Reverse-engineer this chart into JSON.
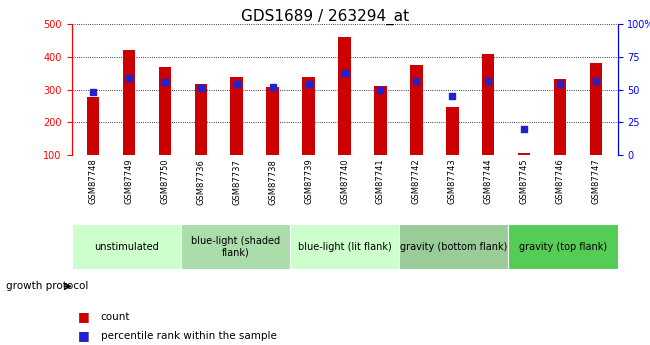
{
  "title": "GDS1689 / 263294_at",
  "samples": [
    "GSM87748",
    "GSM87749",
    "GSM87750",
    "GSM87736",
    "GSM87737",
    "GSM87738",
    "GSM87739",
    "GSM87740",
    "GSM87741",
    "GSM87742",
    "GSM87743",
    "GSM87744",
    "GSM87745",
    "GSM87746",
    "GSM87747"
  ],
  "counts": [
    278,
    422,
    368,
    316,
    338,
    308,
    338,
    460,
    312,
    375,
    248,
    410,
    108,
    332,
    380
  ],
  "percentiles": [
    48,
    59,
    56,
    51,
    54,
    52,
    54,
    63,
    50,
    57,
    45,
    57,
    20,
    54,
    57
  ],
  "bar_color": "#cc0000",
  "dot_color": "#2222cc",
  "bar_width": 0.35,
  "ylim_left": [
    100,
    500
  ],
  "ylim_right": [
    0,
    100
  ],
  "yticks_left": [
    100,
    200,
    300,
    400,
    500
  ],
  "yticks_right": [
    0,
    25,
    50,
    75,
    100
  ],
  "yticklabels_right": [
    "0",
    "25",
    "50",
    "75",
    "100%"
  ],
  "groups": [
    {
      "label": "unstimulated",
      "start": 0,
      "end": 3,
      "color": "#ccffcc"
    },
    {
      "label": "blue-light (shaded\nflank)",
      "start": 3,
      "end": 6,
      "color": "#aaddaa"
    },
    {
      "label": "blue-light (lit flank)",
      "start": 6,
      "end": 9,
      "color": "#ccffcc"
    },
    {
      "label": "gravity (bottom flank)",
      "start": 9,
      "end": 12,
      "color": "#99cc99"
    },
    {
      "label": "gravity (top flank)",
      "start": 12,
      "end": 15,
      "color": "#55cc55"
    }
  ],
  "growth_protocol_label": "growth protocol",
  "legend_count_label": "count",
  "legend_percentile_label": "percentile rank within the sample",
  "grid_color": "#000000",
  "background_color": "#d8d8d8",
  "plot_bg": "#ffffff",
  "tick_fontsize": 7,
  "title_fontsize": 11,
  "group_fontsize": 7
}
